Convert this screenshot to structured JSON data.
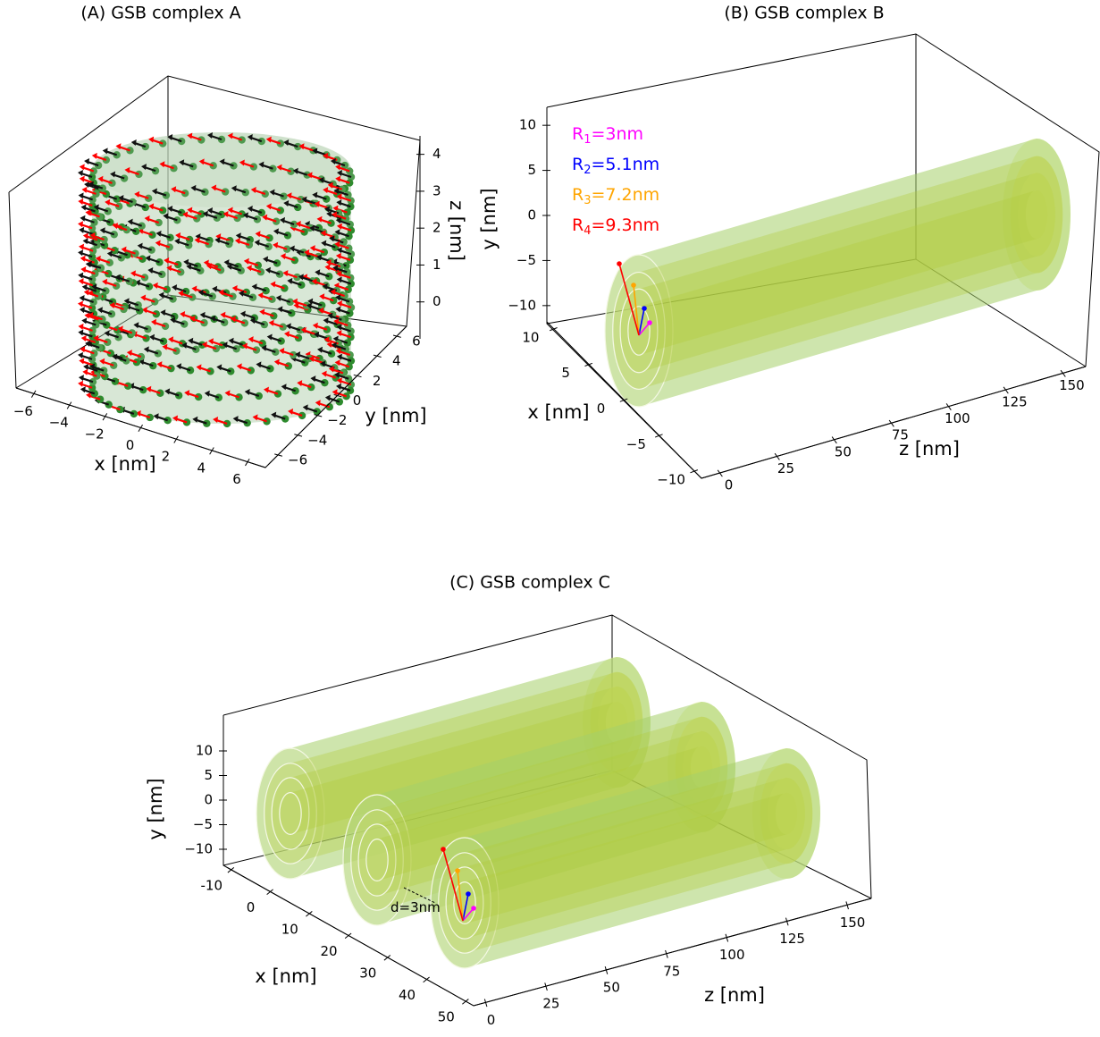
{
  "chart_data": [
    {
      "type": "quiver3d",
      "title": "(A) GSB complex A",
      "xlabel": "x [nm]",
      "ylabel": "y [nm]",
      "zlabel": "z [nm]",
      "xlim": [
        -7,
        7
      ],
      "xticks": [
        {
          "value": -6,
          "label": "−6"
        },
        {
          "value": -4,
          "label": "−4"
        },
        {
          "value": -2,
          "label": "−2"
        },
        0,
        2,
        4,
        6
      ],
      "ylim": [
        -7,
        7
      ],
      "yticks": [
        {
          "value": -6,
          "label": "−6"
        },
        {
          "value": -4,
          "label": "−4"
        },
        {
          "value": -2,
          "label": "−2"
        },
        0,
        2,
        4,
        6
      ],
      "zlim": [
        -1,
        4.5
      ],
      "zticks": [
        0,
        1,
        2,
        3,
        4
      ]
    },
    {
      "type": "surface3d",
      "title": "(B) GSB complex B",
      "xlabel": "x [nm]",
      "ylabel": "y [nm]",
      "zlabel": "z [nm]",
      "xlim": [
        -11,
        11
      ],
      "xticks": [
        {
          "value": -10,
          "label": "−10"
        },
        {
          "value": -5,
          "label": "−5"
        },
        0,
        5,
        10
      ],
      "ylim": [
        -12,
        12
      ],
      "yticks": [
        {
          "value": -10,
          "label": "−10"
        },
        {
          "value": -5,
          "label": "−5"
        },
        0,
        5,
        10
      ],
      "zlim": [
        -8,
        160
      ],
      "zticks": [
        0,
        25,
        50,
        75,
        100,
        125,
        150
      ],
      "annotations": [
        {
          "text": "R",
          "sub": "1",
          "suffix": "=3nm",
          "color": "#ff00ff"
        },
        {
          "text": "R",
          "sub": "2",
          "suffix": "=5.1nm",
          "color": "#0000ff"
        },
        {
          "text": "R",
          "sub": "3",
          "suffix": "=7.2nm",
          "color": "#ffa500"
        },
        {
          "text": "R",
          "sub": "4",
          "suffix": "=9.3nm",
          "color": "#ff0000"
        }
      ]
    },
    {
      "type": "surface3d",
      "title": "(C) GSB complex C",
      "xlabel": "x [nm]",
      "ylabel": "y [nm]",
      "zlabel": "z [nm]",
      "xlim": [
        -12,
        52
      ],
      "xticks": [
        {
          "value": -10,
          "label": "-10"
        },
        0,
        10,
        20,
        30,
        40,
        50
      ],
      "ylim": [
        -12,
        12
      ],
      "yticks": [
        {
          "value": -10,
          "label": "−10"
        },
        {
          "value": -5,
          "label": "−5"
        },
        0,
        5,
        10
      ],
      "zlim": [
        -5,
        160
      ],
      "zticks": [
        0,
        25,
        50,
        75,
        100,
        125,
        150
      ],
      "annotations": [
        {
          "text": "d=3nm"
        }
      ]
    }
  ]
}
